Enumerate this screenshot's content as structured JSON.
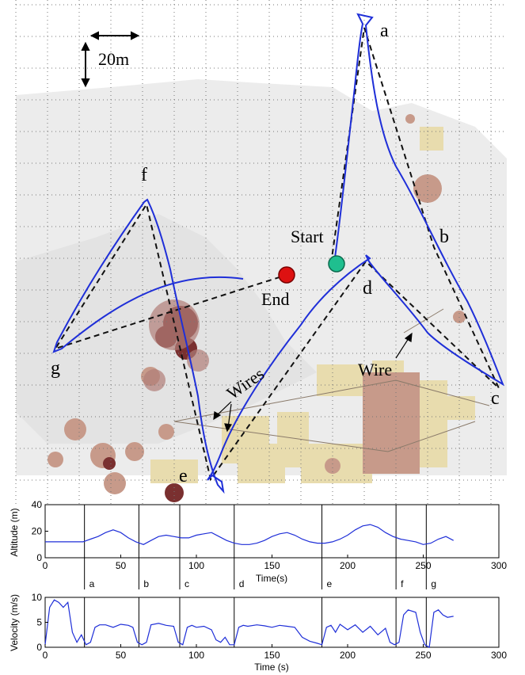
{
  "colors": {
    "trajectory": "#1f2fd8",
    "planned_path": "#111111",
    "start_marker": "#1fbf8f",
    "end_marker": "#dd1111",
    "grid": "#777777",
    "map_light": "#e9e9e9",
    "map_pale": "#e8dcae",
    "map_mid": "#c79a8a",
    "map_dark": "#7a3030",
    "wire": "#8a7a6a",
    "axis": "#000000",
    "trace": "#1f2fd8"
  },
  "map": {
    "scale_label": "20m",
    "labels": {
      "start": "Start",
      "end": "End",
      "wires": "Wires",
      "wire": "Wire"
    },
    "waypoints": [
      "a",
      "b",
      "c",
      "d",
      "e",
      "f",
      "g"
    ]
  },
  "chart_data": [
    {
      "type": "line",
      "ylabel": "Altitude (m)",
      "xlabel": "Time(s)",
      "xlim": [
        0,
        300
      ],
      "ylim": [
        0,
        40
      ],
      "xticks": [
        0,
        50,
        100,
        150,
        200,
        250,
        300
      ],
      "yticks": [
        0,
        20,
        40
      ],
      "grid": false,
      "series": [
        {
          "x": [
            0,
            5,
            10,
            15,
            20,
            25,
            30,
            35,
            40,
            45,
            50,
            55,
            60,
            65,
            70,
            75,
            80,
            85,
            90,
            95,
            100,
            105,
            110,
            115,
            120,
            125,
            130,
            135,
            140,
            145,
            150,
            155,
            160,
            165,
            170,
            175,
            180,
            185,
            190,
            195,
            200,
            205,
            210,
            215,
            220,
            225,
            230,
            235,
            240,
            245,
            250,
            255,
            260,
            265,
            270
          ],
          "values": [
            12,
            12,
            12,
            12,
            12,
            12,
            14,
            16,
            19,
            21,
            19,
            15,
            12,
            10,
            13,
            16,
            17,
            16,
            15,
            15,
            17,
            18,
            19,
            16,
            13,
            11,
            10,
            10,
            11,
            13,
            16,
            18,
            19,
            17,
            14,
            12,
            11,
            11,
            12,
            14,
            17,
            21,
            24,
            25,
            23,
            19,
            16,
            14,
            13,
            12,
            10,
            11,
            14,
            16,
            13
          ]
        }
      ],
      "markers": [
        {
          "x": 26,
          "label": "a"
        },
        {
          "x": 62,
          "label": "b"
        },
        {
          "x": 89,
          "label": "c"
        },
        {
          "x": 125,
          "label": "d"
        },
        {
          "x": 183,
          "label": "e"
        },
        {
          "x": 232,
          "label": "f"
        },
        {
          "x": 252,
          "label": "g"
        }
      ]
    },
    {
      "type": "line",
      "ylabel": "Velocity (m/s)",
      "xlabel": "Time (s)",
      "xlim": [
        0,
        300
      ],
      "ylim": [
        0,
        10
      ],
      "xticks": [
        0,
        50,
        100,
        150,
        200,
        250,
        300
      ],
      "yticks": [
        0,
        5,
        10
      ],
      "grid": false,
      "series": [
        {
          "x": [
            0,
            3,
            6,
            9,
            12,
            15,
            18,
            21,
            24,
            27,
            30,
            33,
            36,
            40,
            45,
            50,
            55,
            58,
            61,
            64,
            67,
            70,
            75,
            80,
            85,
            88,
            91,
            94,
            97,
            100,
            105,
            110,
            113,
            116,
            119,
            122,
            125,
            128,
            131,
            134,
            140,
            145,
            150,
            155,
            160,
            165,
            170,
            175,
            180,
            183,
            186,
            189,
            192,
            195,
            200,
            205,
            210,
            215,
            220,
            225,
            228,
            231,
            234,
            237,
            240,
            245,
            248,
            251,
            254,
            257,
            260,
            263,
            266,
            270
          ],
          "values": [
            0.5,
            8,
            9.5,
            9,
            8,
            9,
            3,
            1,
            2.5,
            0.5,
            1,
            4,
            4.5,
            4.5,
            4,
            4.6,
            4.4,
            4,
            1,
            0.5,
            1,
            4.5,
            4.8,
            4.4,
            4.2,
            1,
            0.5,
            4,
            4.4,
            4,
            4.2,
            3.5,
            1.5,
            1,
            2,
            0.5,
            0.5,
            4,
            4.4,
            4.2,
            4.5,
            4.3,
            4,
            4.4,
            4.2,
            4,
            2,
            1.2,
            0.8,
            0.5,
            4,
            4.4,
            3,
            4.6,
            3.5,
            4.5,
            3,
            4.2,
            2.5,
            3.8,
            1,
            0.5,
            1,
            6.5,
            7.5,
            7,
            3,
            0.5,
            0,
            7,
            7.5,
            6.5,
            6,
            6.2
          ]
        }
      ]
    }
  ]
}
